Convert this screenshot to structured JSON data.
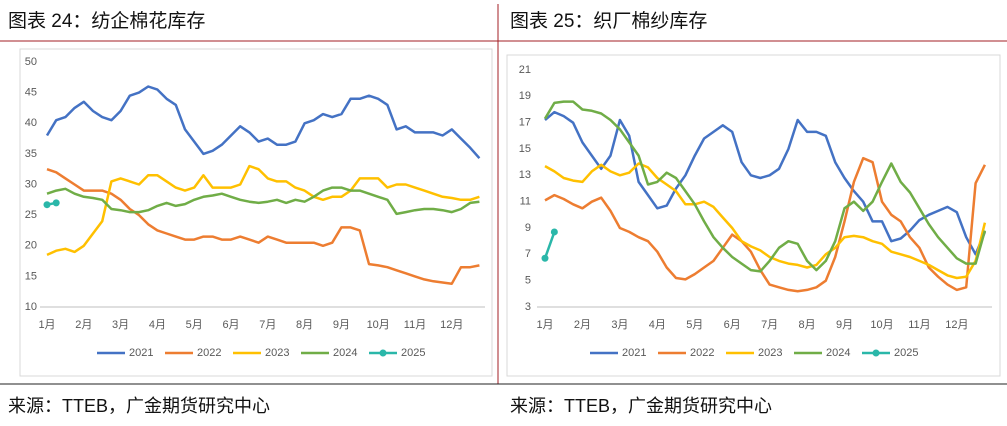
{
  "chart_data": [
    {
      "type": "line",
      "title": "图表 24：纺企棉花库存",
      "source": "来源：TTEB，广金期货研究中心",
      "categories": [
        "1月",
        null,
        null,
        null,
        "2月",
        null,
        null,
        null,
        "3月",
        null,
        null,
        null,
        "4月",
        null,
        null,
        null,
        "5月",
        null,
        null,
        null,
        "6月",
        null,
        null,
        null,
        "7月",
        null,
        null,
        null,
        "8月",
        null,
        null,
        null,
        "9月",
        null,
        null,
        null,
        "10月",
        null,
        null,
        null,
        "11月",
        null,
        null,
        null,
        "12月",
        null,
        null,
        null
      ],
      "ylim": [
        10,
        50
      ],
      "yticks": [
        10,
        15,
        20,
        25,
        30,
        35,
        40,
        45,
        50
      ],
      "grid": false,
      "legend": "bottom",
      "series": [
        {
          "name": "2021",
          "color": "#4472c4",
          "values": [
            38,
            40.5,
            41,
            42.5,
            43.5,
            42,
            41,
            40.5,
            42,
            44.5,
            45,
            46,
            45.5,
            44,
            43,
            39,
            37,
            35,
            35.5,
            36.5,
            38,
            39.5,
            38.5,
            37,
            37.5,
            36.5,
            36.5,
            37,
            40,
            40.5,
            41.5,
            41,
            41.5,
            44,
            44,
            44.5,
            44,
            43,
            39,
            39.5,
            38.5,
            38.5,
            38.5,
            38,
            39,
            37.5,
            36,
            34.3
          ]
        },
        {
          "name": "2022",
          "color": "#ed7d31",
          "values": [
            32.5,
            32,
            31,
            30,
            29,
            29,
            29,
            28.5,
            27.5,
            26,
            25,
            23.5,
            22.5,
            22,
            21.5,
            21,
            21,
            21.5,
            21.5,
            21,
            21,
            21.5,
            21,
            20.5,
            21.5,
            21,
            20.5,
            20.5,
            20.5,
            20.5,
            20,
            20.5,
            23,
            23,
            22.5,
            17,
            16.8,
            16.5,
            16,
            15.5,
            15,
            14.5,
            14.2,
            14,
            13.8,
            16.5,
            16.5,
            16.8
          ]
        },
        {
          "name": "2023",
          "color": "#ffc000",
          "values": [
            18.5,
            19.2,
            19.5,
            19,
            20,
            22,
            24,
            30.5,
            31,
            30.5,
            30,
            31.5,
            31.5,
            30.5,
            29.5,
            29,
            29.5,
            31.5,
            29.5,
            29.5,
            29.5,
            30,
            33,
            32.5,
            31,
            30.5,
            30.5,
            29.5,
            29,
            28,
            27.5,
            28,
            28,
            29,
            31,
            31,
            31,
            29.5,
            30,
            30,
            29.5,
            29,
            28.5,
            28,
            27.8,
            27.5,
            27.5,
            28
          ]
        },
        {
          "name": "2024",
          "color": "#70ad47",
          "values": [
            28.5,
            29,
            29.3,
            28.5,
            28,
            27.8,
            27.5,
            26,
            25.8,
            25.5,
            25.5,
            25.8,
            26.5,
            27,
            26.5,
            26.8,
            27.5,
            28,
            28.2,
            28.5,
            28,
            27.5,
            27.2,
            27,
            27.2,
            27.5,
            27,
            27.5,
            27.2,
            28,
            29,
            29.5,
            29.5,
            29,
            29,
            28.5,
            28,
            27.5,
            25.2,
            25.5,
            25.8,
            26,
            26,
            25.8,
            25.5,
            26,
            27,
            27.2
          ]
        },
        {
          "name": "2025",
          "color": "#2ab7a9",
          "marker": "circle",
          "values": [
            26.7,
            27,
            null,
            null,
            null,
            null,
            null,
            null,
            null,
            null,
            null,
            null,
            null,
            null,
            null,
            null,
            null,
            null,
            null,
            null,
            null,
            null,
            null,
            null,
            null,
            null,
            null,
            null,
            null,
            null,
            null,
            null,
            null,
            null,
            null,
            null,
            null,
            null,
            null,
            null,
            null,
            null,
            null,
            null,
            null,
            null,
            null,
            null
          ]
        }
      ]
    },
    {
      "type": "line",
      "title": "图表 25：织厂棉纱库存",
      "source": "来源：TTEB，广金期货研究中心",
      "categories": [
        "1月",
        null,
        null,
        null,
        "2月",
        null,
        null,
        null,
        "3月",
        null,
        null,
        null,
        "4月",
        null,
        null,
        null,
        "5月",
        null,
        null,
        null,
        "6月",
        null,
        null,
        null,
        "7月",
        null,
        null,
        null,
        "8月",
        null,
        null,
        null,
        "9月",
        null,
        null,
        null,
        "10月",
        null,
        null,
        null,
        "11月",
        null,
        null,
        null,
        "12月",
        null,
        null,
        null
      ],
      "ylim": [
        3,
        21
      ],
      "yticks": [
        3,
        5,
        7,
        9,
        11,
        13,
        15,
        17,
        19,
        21
      ],
      "grid": false,
      "legend": "bottom",
      "series": [
        {
          "name": "2021",
          "color": "#4472c4",
          "values": [
            17.2,
            17.8,
            17.5,
            17,
            15.5,
            14.5,
            13.5,
            14.5,
            17.2,
            16,
            12.5,
            11.5,
            10.5,
            10.7,
            12,
            13,
            14.5,
            15.8,
            16.3,
            16.8,
            16.3,
            14,
            13,
            12.8,
            13,
            13.5,
            15,
            17.2,
            16.3,
            16.3,
            16,
            14,
            12.8,
            11.8,
            11,
            9.5,
            9.5,
            8,
            8.2,
            8.8,
            9.6,
            10,
            10.3,
            10.6,
            10.2,
            8.3,
            7,
            8.7
          ]
        },
        {
          "name": "2022",
          "color": "#ed7d31",
          "values": [
            11.1,
            11.5,
            11.2,
            10.8,
            10.5,
            11,
            11.3,
            10.3,
            9,
            8.7,
            8.3,
            8,
            7.2,
            6,
            5.2,
            5.1,
            5.5,
            6,
            6.5,
            7.5,
            8.5,
            8,
            7.2,
            5.8,
            4.7,
            4.5,
            4.3,
            4.2,
            4.3,
            4.5,
            5,
            6.8,
            9.5,
            12.5,
            14.3,
            14,
            11,
            10,
            9.5,
            8.3,
            7.5,
            6,
            5.3,
            4.7,
            4.3,
            4.5,
            12.4,
            13.8
          ]
        },
        {
          "name": "2023",
          "color": "#ffc000",
          "values": [
            13.7,
            13.3,
            12.8,
            12.6,
            12.5,
            13.3,
            13.8,
            13.3,
            13,
            13.2,
            13.9,
            13.6,
            12.8,
            12.3,
            11.8,
            10.8,
            10.8,
            11,
            10.6,
            9.8,
            9,
            8,
            7.6,
            7.3,
            6.8,
            6.5,
            6.3,
            6.2,
            6,
            6.2,
            7,
            7.5,
            8.3,
            8.4,
            8.3,
            8,
            7.8,
            7.2,
            7,
            6.8,
            6.5,
            6.2,
            5.8,
            5.4,
            5.2,
            5.3,
            6.5,
            9.4
          ]
        },
        {
          "name": "2024",
          "color": "#70ad47",
          "values": [
            17.3,
            18.5,
            18.6,
            18.6,
            18,
            17.9,
            17.7,
            17.2,
            16.5,
            15.5,
            14.5,
            12.3,
            12.5,
            13.2,
            12.8,
            11.8,
            10.8,
            9.5,
            8.3,
            7.5,
            6.8,
            6.3,
            5.8,
            5.7,
            6.5,
            7.5,
            8,
            7.8,
            6.5,
            5.8,
            6.5,
            8,
            10.5,
            11,
            10.3,
            11,
            12.5,
            13.9,
            12.5,
            11.7,
            10.5,
            9.3,
            8.3,
            7.5,
            6.7,
            6.3,
            6.3,
            8.8
          ]
        },
        {
          "name": "2025",
          "color": "#2ab7a9",
          "marker": "circle",
          "values": [
            6.7,
            8.7,
            null,
            null,
            null,
            null,
            null,
            null,
            null,
            null,
            null,
            null,
            null,
            null,
            null,
            null,
            null,
            null,
            null,
            null,
            null,
            null,
            null,
            null,
            null,
            null,
            null,
            null,
            null,
            null,
            null,
            null,
            null,
            null,
            null,
            null,
            null,
            null,
            null,
            null,
            null,
            null,
            null,
            null,
            null,
            null,
            null,
            null
          ]
        }
      ]
    }
  ]
}
